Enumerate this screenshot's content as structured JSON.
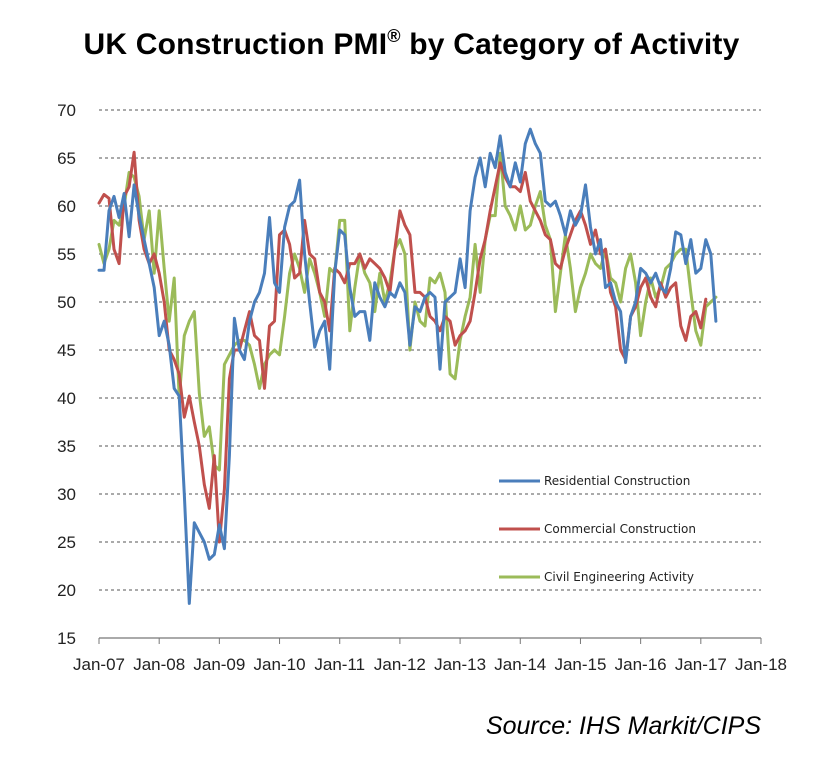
{
  "title": {
    "main": "UK Construction PMI",
    "mark": "®",
    "rest": " by Category of Activity"
  },
  "source": "Source: IHS Markit/CIPS",
  "chart_data": {
    "type": "line",
    "title": "UK Construction PMI® by Category of Activity",
    "xlabel": "",
    "ylabel": "",
    "x_tick_labels": [
      "Jan-07",
      "Jan-08",
      "Jan-09",
      "Jan-10",
      "Jan-11",
      "Jan-12",
      "Jan-13",
      "Jan-14",
      "Jan-15",
      "Jan-16",
      "Jan-17",
      "Jan-18"
    ],
    "x_start": "2007-01",
    "ylim": [
      15,
      70
    ],
    "yticks": [
      15,
      20,
      25,
      30,
      35,
      40,
      45,
      50,
      55,
      60,
      65,
      70
    ],
    "grid": true,
    "legend_position": "lower-right",
    "series": [
      {
        "name": "Residential Construction",
        "color": "#4a7ebb",
        "values": [
          53.3,
          53.3,
          59.5,
          61.0,
          58.8,
          61.3,
          56.8,
          62.2,
          59.0,
          56.5,
          54.0,
          51.5,
          46.5,
          48.0,
          45.5,
          41.0,
          40.2,
          30.0,
          18.6,
          27.0,
          26.0,
          25.0,
          23.2,
          23.7,
          26.8,
          24.3,
          34.0,
          48.3,
          45.0,
          44.0,
          48.0,
          50.0,
          51.0,
          53.0,
          58.8,
          52.0,
          51.0,
          57.8,
          60.0,
          60.5,
          62.7,
          55.0,
          50.0,
          45.3,
          47.0,
          48.0,
          43.0,
          53.0,
          57.5,
          57.0,
          51.5,
          48.5,
          49.0,
          49.0,
          46.0,
          52.0,
          50.5,
          49.5,
          51.0,
          50.5,
          52.0,
          51.0,
          45.5,
          49.5,
          49.0,
          50.5,
          51.0,
          50.5,
          43.0,
          50.0,
          50.5,
          51.0,
          54.5,
          51.5,
          59.5,
          63.0,
          65.0,
          62.0,
          65.5,
          64.0,
          67.3,
          63.5,
          62.0,
          64.5,
          62.5,
          66.5,
          68.0,
          66.5,
          65.5,
          60.5,
          60.0,
          60.5,
          59.0,
          57.0,
          59.5,
          58.0,
          59.0,
          62.2,
          57.8,
          55.0,
          56.5,
          51.5,
          52.0,
          50.0,
          49.0,
          43.7,
          48.5,
          50.0,
          53.5,
          53.0,
          52.0,
          53.0,
          51.5,
          51.0,
          53.5,
          57.3,
          57.0,
          54.0,
          56.5,
          53.0,
          53.5,
          56.5,
          55.0,
          48.0
        ]
      },
      {
        "name": "Commercial Construction",
        "color": "#c0504d",
        "values": [
          60.3,
          61.2,
          60.8,
          55.5,
          54.0,
          61.0,
          62.0,
          65.6,
          58.5,
          55.5,
          54.0,
          55.0,
          53.0,
          50.0,
          45.0,
          44.0,
          42.5,
          38.0,
          40.2,
          37.5,
          35.0,
          31.0,
          28.5,
          34.0,
          25.0,
          30.5,
          42.0,
          45.0,
          45.0,
          47.0,
          49.0,
          46.5,
          46.0,
          41.0,
          47.5,
          48.0,
          57.0,
          57.5,
          56.0,
          52.5,
          53.0,
          58.5,
          55.0,
          54.5,
          51.0,
          50.0,
          47.0,
          53.5,
          53.0,
          52.0,
          54.0,
          54.0,
          55.0,
          53.5,
          54.5,
          54.0,
          53.5,
          52.5,
          51.0,
          55.5,
          59.5,
          58.0,
          57.0,
          51.0,
          51.0,
          50.5,
          48.5,
          48.0,
          47.0,
          48.5,
          48.0,
          45.5,
          46.5,
          47.0,
          48.0,
          51.0,
          54.5,
          56.5,
          59.5,
          62.0,
          64.5,
          63.0,
          62.0,
          62.0,
          61.5,
          63.5,
          60.5,
          59.5,
          58.5,
          57.0,
          56.5,
          54.0,
          53.5,
          55.5,
          57.0,
          58.5,
          59.5,
          58.0,
          56.0,
          57.5,
          55.0,
          55.5,
          51.0,
          49.5,
          45.0,
          44.0,
          48.5,
          49.5,
          51.5,
          52.5,
          50.5,
          49.5,
          52.0,
          50.5,
          51.5,
          52.0,
          47.5,
          46.0,
          48.5,
          49.0,
          47.3,
          50.3
        ]
      },
      {
        "name": "Civil Engineering Activity",
        "color": "#9bbb59",
        "values": [
          56.0,
          54.0,
          55.5,
          58.5,
          58.0,
          60.0,
          63.5,
          63.0,
          61.0,
          56.5,
          59.5,
          53.0,
          59.5,
          53.5,
          48.0,
          52.5,
          40.0,
          46.5,
          48.0,
          49.0,
          40.5,
          36.0,
          37.0,
          33.0,
          32.5,
          43.5,
          44.5,
          45.5,
          46.0,
          46.0,
          45.5,
          43.5,
          41.0,
          43.5,
          44.5,
          45.0,
          44.5,
          48.5,
          53.0,
          55.0,
          53.5,
          51.0,
          54.5,
          53.0,
          51.0,
          48.5,
          53.5,
          53.0,
          58.5,
          58.5,
          47.0,
          51.5,
          55.0,
          53.0,
          52.0,
          49.0,
          53.0,
          50.0,
          52.0,
          55.5,
          56.5,
          55.0,
          45.0,
          50.0,
          48.0,
          47.5,
          52.5,
          52.0,
          53.0,
          51.0,
          42.5,
          42.0,
          46.0,
          48.5,
          50.5,
          56.0,
          51.0,
          56.5,
          59.0,
          59.0,
          65.5,
          60.0,
          59.0,
          57.5,
          60.0,
          57.5,
          58.0,
          60.0,
          61.5,
          58.0,
          56.5,
          49.0,
          53.0,
          57.0,
          53.5,
          49.0,
          51.5,
          53.0,
          55.0,
          54.0,
          53.5,
          55.5,
          52.5,
          52.0,
          50.0,
          53.5,
          55.0,
          52.0,
          46.5,
          50.0,
          52.5,
          50.5,
          51.5,
          53.5,
          54.0,
          55.0,
          55.5,
          55.5,
          51.0,
          47.0,
          45.5,
          49.5,
          50.0,
          50.5
        ]
      }
    ]
  }
}
